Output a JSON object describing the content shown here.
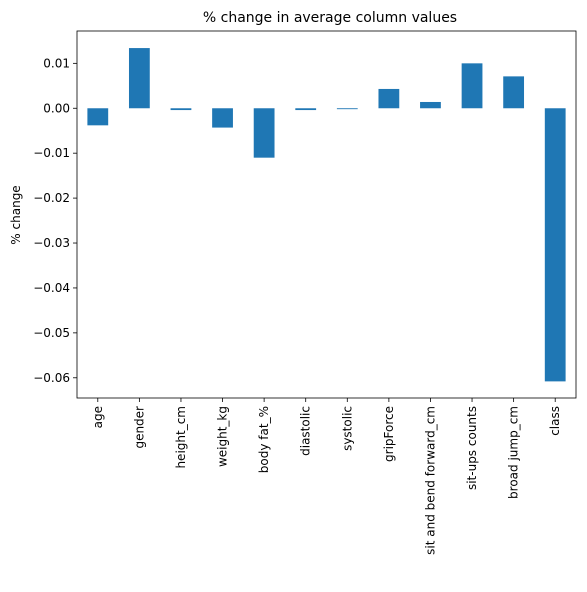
{
  "chart_data": {
    "type": "bar",
    "title": "% change in average column values",
    "xlabel": "",
    "ylabel": "% change",
    "categories": [
      "age",
      "gender",
      "height_cm",
      "weight_kg",
      "body fat_%",
      "diastolic",
      "systolic",
      "gripForce",
      "sit and bend forward_cm",
      "sit-ups counts",
      "broad jump_cm",
      "class"
    ],
    "values": [
      -0.0038,
      0.0134,
      -0.0004,
      -0.0043,
      -0.011,
      -0.0004,
      -0.0002,
      0.0043,
      0.0014,
      0.01,
      0.0071,
      -0.0608
    ],
    "ylim": [
      -0.0645,
      0.0172
    ],
    "yticks": [
      0.01,
      0.0,
      -0.01,
      -0.02,
      -0.03,
      -0.04,
      -0.05,
      -0.06
    ],
    "ytick_labels": [
      "0.01",
      "0.00",
      "−0.01",
      "−0.02",
      "−0.03",
      "−0.04",
      "−0.05",
      "−0.06"
    ],
    "bar_color": "#1f77b4",
    "grid": false,
    "legend": "none"
  }
}
